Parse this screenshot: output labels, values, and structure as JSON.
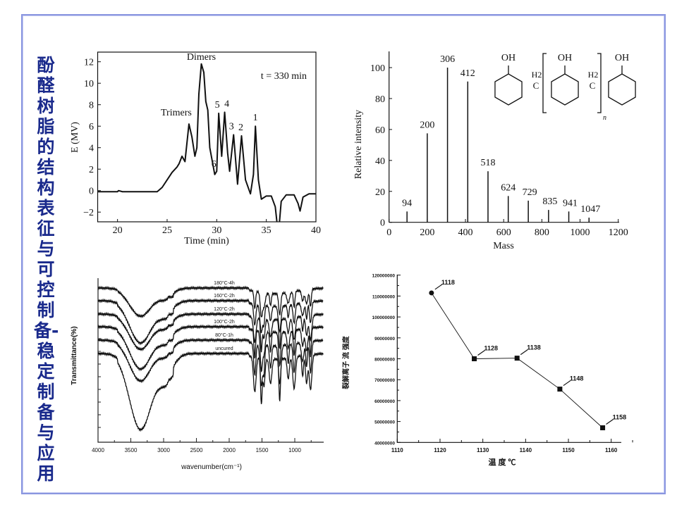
{
  "slide_title": "酚醛树脂的结构表征与可控制备-稳定制备与应用",
  "chart_data": [
    {
      "type": "line",
      "title": "",
      "annotation": "t = 330 min",
      "xlabel": "Time (min)",
      "ylabel": "E (MV)",
      "xlim": [
        18,
        40
      ],
      "ylim": [
        -3,
        13
      ],
      "xticks": [
        20,
        25,
        30,
        35,
        40
      ],
      "yticks": [
        -2,
        0,
        2,
        4,
        6,
        8,
        10,
        12
      ],
      "peak_labels": [
        {
          "text": "Dimers",
          "x": 28.45,
          "y": 11.8
        },
        {
          "text": "Trimers",
          "x": 27.2,
          "y": 6.2
        },
        {
          "text": "5",
          "x": 30.2,
          "y": 7.2
        },
        {
          "text": "4",
          "x": 30.8,
          "y": 7.3
        },
        {
          "text": "6",
          "x": 29.5,
          "y": 3.0
        },
        {
          "text": "3",
          "x": 31.7,
          "y": 5.2
        },
        {
          "text": "2",
          "x": 32.5,
          "y": 5.1
        },
        {
          "text": "1",
          "x": 33.9,
          "y": 6.0
        }
      ],
      "x": [
        18,
        20,
        20.1,
        20.5,
        24,
        24.5,
        25,
        25.5,
        26,
        26.2,
        26.5,
        26.8,
        27.2,
        27.5,
        27.8,
        28,
        28.2,
        28.45,
        28.7,
        28.9,
        29.1,
        29.3,
        29.5,
        29.8,
        30,
        30.2,
        30.5,
        30.8,
        31.1,
        31.3,
        31.7,
        32.1,
        32.5,
        32.9,
        33.4,
        33.7,
        33.9,
        34.2,
        34.5,
        35,
        35.5,
        35.9,
        36.1,
        36.3,
        36.5,
        37,
        37.8,
        38.2,
        38.4,
        38.7,
        39.3,
        40
      ],
      "y": [
        -0.1,
        -0.1,
        0,
        -0.1,
        -0.1,
        0.3,
        1,
        1.7,
        2.2,
        2.5,
        3.2,
        2.7,
        6.2,
        5,
        3.2,
        4,
        9,
        11.8,
        11,
        8.3,
        7.5,
        4,
        3,
        1.5,
        1.8,
        7.2,
        3.2,
        7.3,
        3.5,
        1.8,
        5.2,
        0.6,
        5.1,
        1,
        -0.3,
        1.5,
        6,
        1,
        -0.8,
        -0.5,
        -0.5,
        -1.5,
        -3.2,
        -3.2,
        -1,
        -0.4,
        -0.4,
        -1.2,
        -1.9,
        -0.6,
        -0.3,
        -0.3
      ]
    },
    {
      "type": "bar",
      "xlabel": "Mass",
      "ylabel": "Relative intensity",
      "xlim": [
        0,
        1200
      ],
      "ylim": [
        0,
        110
      ],
      "xticks": [
        0,
        200,
        400,
        600,
        800,
        1000,
        1200
      ],
      "yticks": [
        0,
        20,
        40,
        60,
        80,
        100
      ],
      "x": [
        94,
        200,
        306,
        412,
        518,
        624,
        729,
        835,
        941,
        1047
      ],
      "values": [
        7,
        57.5,
        100,
        91,
        33,
        17,
        14,
        8,
        7,
        3
      ],
      "labels": [
        "94",
        "200",
        "306",
        "412",
        "518",
        "624",
        "729",
        "835",
        "941",
        "1047"
      ],
      "structure_labels": {
        "oh": "OH",
        "ch2": "C",
        "h2": "H2",
        "n": "n"
      }
    },
    {
      "type": "line",
      "xlabel": "wavenumber(cm⁻¹)",
      "ylabel": "Transmittance(%)",
      "xlim": [
        4000,
        565
      ],
      "xticks": [
        4000,
        3500,
        3000,
        2500,
        2000,
        1500,
        1000
      ],
      "series": [
        {
          "name": "180°C-4h"
        },
        {
          "name": "160°C-2h"
        },
        {
          "name": "120°C-2h"
        },
        {
          "name": "100°C-2h"
        },
        {
          "name": "80°C-1h"
        },
        {
          "name": "uncured"
        }
      ]
    },
    {
      "type": "line",
      "xlabel": "温 度 ℃",
      "ylabel": "裂解离子 流 强度",
      "xlim": [
        1110,
        1165
      ],
      "ylim": [
        40000000,
        120000000
      ],
      "xticks": [
        1110,
        1120,
        1130,
        1140,
        1150,
        1160
      ],
      "yticks": [
        40000000,
        50000000,
        60000000,
        70000000,
        80000000,
        90000000,
        100000000,
        110000000,
        120000000
      ],
      "x": [
        1118,
        1128,
        1138,
        1148,
        1158
      ],
      "y": [
        111500000,
        80000000,
        80300000,
        65500000,
        47000000
      ],
      "labels": [
        "1118",
        "1128",
        "1138",
        "1148",
        "1158"
      ]
    }
  ]
}
